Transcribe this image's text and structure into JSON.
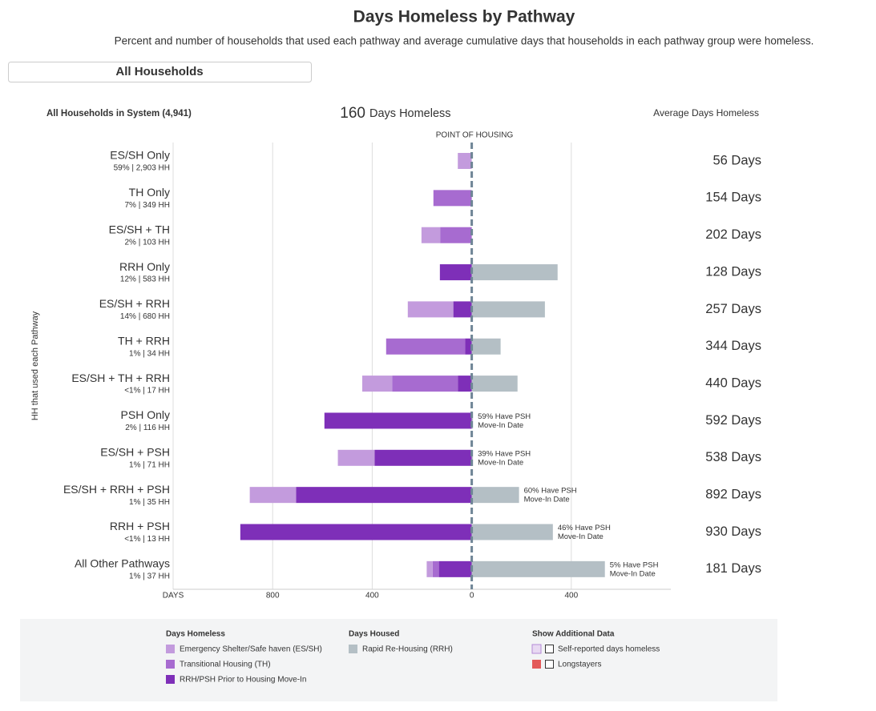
{
  "header": {
    "title": "Days Homeless by Pathway",
    "subtitle": "Percent and number of households that used each pathway and average cumulative days that households in each pathway group were homeless.",
    "selector": "All Households"
  },
  "chart_data": {
    "type": "diverging-bar",
    "system_label": "All Households in System (4,941)",
    "total_days": 160,
    "total_days_label": "Days Homeless",
    "avg_header": "Average Days Homeless",
    "zero_label": "POINT OF HOUSING",
    "y_axis_label": "HH that used each Pathway",
    "categories": [
      "ES/SH Only",
      "TH Only",
      "ES/SH + TH",
      "RRH Only",
      "ES/SH + RRH",
      "TH + RRH",
      "ES/SH + TH + RRH",
      "PSH Only",
      "ES/SH + PSH",
      "ES/SH + RRH + PSH",
      "RRH + PSH",
      "All Other Pathways"
    ],
    "share_labels": [
      "59% | 2,903 HH",
      "7% | 349 HH",
      "2% | 103 HH",
      "12% | 583 HH",
      "14% | 680 HH",
      "1% | 34 HH",
      "<1% | 17 HH",
      "2% | 116 HH",
      "1% | 71 HH",
      "1% | 35 HH",
      "<1% | 13 HH",
      "1% | 37 HH"
    ],
    "series": [
      {
        "name": "RRH/PSH Prior to Housing Move-In",
        "color": "#7e2fb8",
        "values": [
          null,
          null,
          null,
          -128,
          -74,
          -26,
          -55,
          -592,
          -390,
          -706,
          -930,
          -132
        ]
      },
      {
        "name": "Transitional Housing (TH)",
        "color": "#a76bd0",
        "values": [
          null,
          -154,
          -127,
          null,
          null,
          -318,
          -265,
          null,
          null,
          null,
          null,
          -25
        ]
      },
      {
        "name": "Emergency Shelter/Safe haven (ES/SH)",
        "color": "#c39bdd",
        "values": [
          -56,
          null,
          -75,
          null,
          -183,
          null,
          -120,
          null,
          -148,
          -186,
          null,
          -24
        ]
      },
      {
        "name": "Rapid Re-Housing (RRH)",
        "color": "#b4bfc5",
        "values": [
          null,
          null,
          null,
          345,
          294,
          116,
          184,
          5,
          5,
          190,
          326,
          535
        ]
      }
    ],
    "avg_days": [
      56,
      154,
      202,
      128,
      257,
      344,
      440,
      592,
      538,
      892,
      930,
      181
    ],
    "avg_days_labels": [
      "56 Days",
      "154 Days",
      "202 Days",
      "128 Days",
      "257 Days",
      "344 Days",
      "440 Days",
      "592 Days",
      "538 Days",
      "892 Days",
      "930 Days",
      "181 Days"
    ],
    "annotations": [
      null,
      null,
      null,
      null,
      null,
      null,
      null,
      [
        "59% Have PSH",
        "Move-In Date"
      ],
      [
        "39% Have PSH",
        "Move-In Date"
      ],
      [
        "60% Have PSH",
        "Move-In Date"
      ],
      [
        "46% Have PSH",
        "Move-In Date"
      ],
      [
        "5% Have PSH",
        "Move-In Date"
      ]
    ],
    "xlim": [
      -1200,
      800
    ],
    "xticks": [
      {
        "value": -1200,
        "label": "DAYS"
      },
      {
        "value": -800,
        "label": "800"
      },
      {
        "value": -400,
        "label": "400"
      },
      0,
      400
    ],
    "grid": true,
    "legend": {
      "groups": [
        {
          "title": "Days Homeless",
          "series": [
            2,
            1,
            0
          ]
        },
        {
          "title": "Days Housed",
          "series": [
            3
          ]
        }
      ],
      "extra_title": "Show Additional Data",
      "extra_items": [
        "Self-reported days homeless",
        "Longstayers"
      ]
    }
  }
}
